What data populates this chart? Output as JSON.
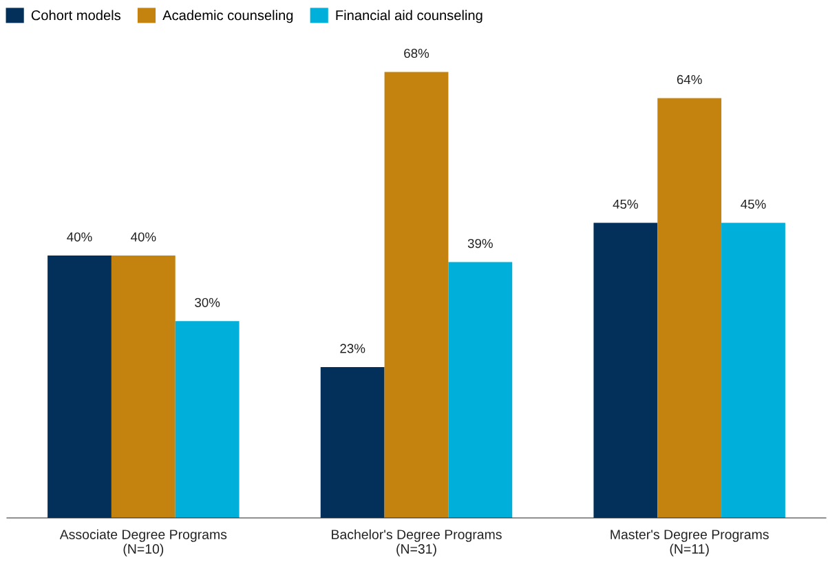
{
  "chart_data": {
    "type": "bar",
    "categories": [
      "Associate Degree Programs\n(N=10)",
      "Bachelor's Degree Programs\n(N=31)",
      "Master's Degree Programs\n(N=11)"
    ],
    "series": [
      {
        "name": "Cohort models",
        "color": "#03305a",
        "values": [
          40,
          23,
          45
        ],
        "value_labels": [
          "40%",
          "23%",
          "45%"
        ]
      },
      {
        "name": "Academic counseling",
        "color": "#c4820e",
        "values": [
          40,
          68,
          64
        ],
        "value_labels": [
          "40%",
          "68%",
          "64%"
        ]
      },
      {
        "name": "Financial aid counseling",
        "color": "#00b0da",
        "values": [
          30,
          39,
          45
        ],
        "value_labels": [
          "30%",
          "39%",
          "45%"
        ]
      }
    ],
    "legend": "top left",
    "grid": false
  }
}
